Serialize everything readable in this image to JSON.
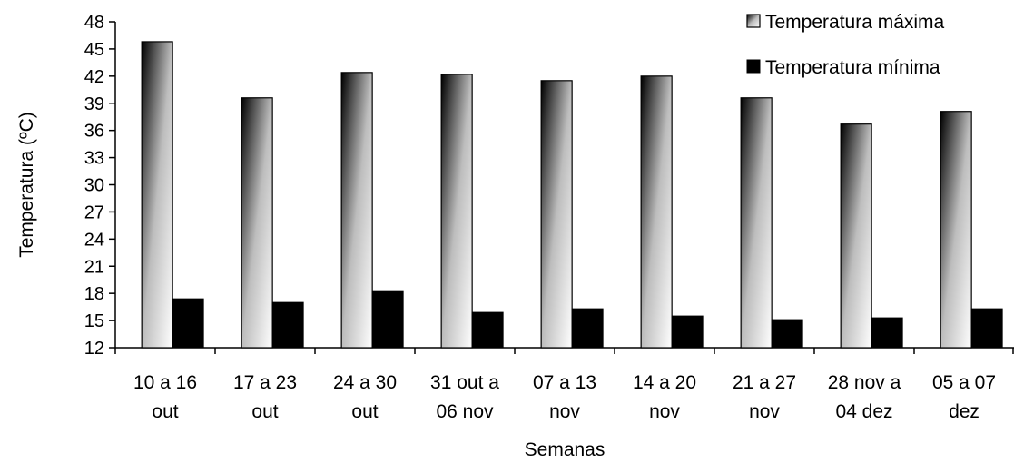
{
  "chart_data": {
    "type": "bar",
    "xlabel": "Semanas",
    "ylabel": "Temperatura (ºC)",
    "ylim": [
      12,
      48
    ],
    "yticks": [
      12,
      15,
      18,
      21,
      24,
      27,
      30,
      33,
      36,
      39,
      42,
      45,
      48
    ],
    "categories": [
      [
        "10 a 16",
        "out"
      ],
      [
        "17 a 23",
        "out"
      ],
      [
        "24 a 30",
        "out"
      ],
      [
        "31 out a",
        "06 nov"
      ],
      [
        "07 a 13",
        "nov"
      ],
      [
        "14 a 20",
        "nov"
      ],
      [
        "21 a 27",
        "nov"
      ],
      [
        "28 nov a",
        "04 dez"
      ],
      [
        "05 a 07",
        "dez"
      ]
    ],
    "series": [
      {
        "name": "Temperatura máxima",
        "values": [
          45.8,
          39.6,
          42.4,
          42.2,
          41.5,
          42.0,
          39.6,
          36.7,
          38.1
        ],
        "fill": "gradient-white-black"
      },
      {
        "name": "Temperatura mínima",
        "values": [
          17.4,
          17.0,
          18.3,
          15.9,
          16.3,
          15.5,
          15.1,
          15.3,
          16.3
        ],
        "fill": "#000000"
      }
    ],
    "legend": "top-right",
    "grid": false
  }
}
